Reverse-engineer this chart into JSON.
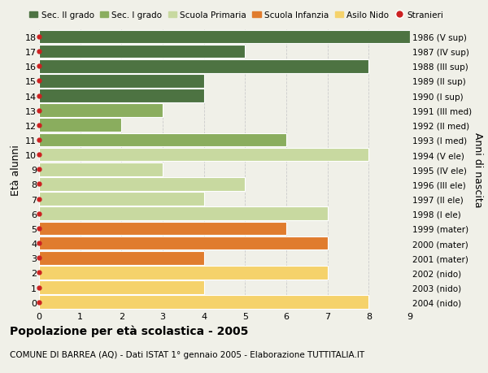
{
  "ages": [
    0,
    1,
    2,
    3,
    4,
    5,
    6,
    7,
    8,
    9,
    10,
    11,
    12,
    13,
    14,
    15,
    16,
    17,
    18
  ],
  "right_labels": [
    "2004 (nido)",
    "2003 (nido)",
    "2002 (nido)",
    "2001 (mater)",
    "2000 (mater)",
    "1999 (mater)",
    "1998 (I ele)",
    "1997 (II ele)",
    "1996 (III ele)",
    "1995 (IV ele)",
    "1994 (V ele)",
    "1993 (I med)",
    "1992 (II med)",
    "1991 (III med)",
    "1990 (I sup)",
    "1989 (II sup)",
    "1988 (III sup)",
    "1987 (IV sup)",
    "1986 (V sup)"
  ],
  "bar_values": [
    8,
    4,
    7,
    4,
    7,
    6,
    7,
    4,
    5,
    3,
    8,
    6,
    2,
    3,
    4,
    4,
    8,
    5,
    9
  ],
  "bar_colors": [
    "#f5d26b",
    "#f5d26b",
    "#f5d26b",
    "#e07c2e",
    "#e07c2e",
    "#e07c2e",
    "#c8d9a0",
    "#c8d9a0",
    "#c8d9a0",
    "#c8d9a0",
    "#c8d9a0",
    "#8aad5e",
    "#8aad5e",
    "#8aad5e",
    "#4d7342",
    "#4d7342",
    "#4d7342",
    "#4d7342",
    "#4d7342"
  ],
  "legend_labels": [
    "Sec. II grado",
    "Sec. I grado",
    "Scuola Primaria",
    "Scuola Infanzia",
    "Asilo Nido",
    "Stranieri"
  ],
  "legend_colors": [
    "#4d7342",
    "#8aad5e",
    "#c8d9a0",
    "#e07c2e",
    "#f5d26b",
    "#cc2222"
  ],
  "ylabel": "Età alunni",
  "right_ylabel": "Anni di nascita",
  "title": "Popolazione per età scolastica - 2005",
  "subtitle": "COMUNE DI BARREA (AQ) - Dati ISTAT 1° gennaio 2005 - Elaborazione TUTTITALIA.IT",
  "xlim": [
    0,
    9
  ],
  "ylim": [
    -0.5,
    18.5
  ],
  "bg_color": "#f0f0e8",
  "grid_color": "#cccccc",
  "bar_height": 0.92
}
